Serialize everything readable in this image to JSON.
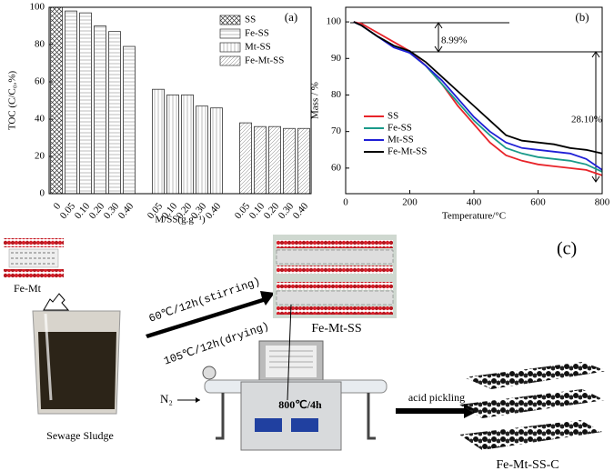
{
  "chart_data": [
    {
      "type": "bar",
      "panel_label": "(a)",
      "x_label": "M/SS(g.g⁻¹)",
      "y_label": "TOC (C/C₀,%)",
      "categories": [
        "0",
        "0.05",
        "0.10",
        "0.20",
        "0.30",
        "0.40",
        null,
        "0.05",
        "0.10",
        "0.20",
        "0.30",
        "0.40",
        null,
        "0.05",
        "0.10",
        "0.20",
        "0.30",
        "0.40"
      ],
      "series": [
        {
          "name": "SS",
          "pattern": "crosshatch",
          "values": [
            100,
            null,
            null,
            null,
            null,
            null,
            null,
            null,
            null,
            null,
            null,
            null,
            null,
            null,
            null,
            null,
            null,
            null
          ]
        },
        {
          "name": "Fe-SS",
          "pattern": "horizontal",
          "values": [
            null,
            98,
            97,
            90,
            87,
            79,
            null,
            null,
            null,
            null,
            null,
            null,
            null,
            null,
            null,
            null,
            null,
            null
          ]
        },
        {
          "name": "Mt-SS",
          "pattern": "vertical",
          "values": [
            null,
            null,
            null,
            null,
            null,
            null,
            null,
            56,
            53,
            53,
            47,
            46,
            null,
            null,
            null,
            null,
            null,
            null
          ]
        },
        {
          "name": "Fe-Mt-SS",
          "pattern": "diagonal",
          "values": [
            null,
            null,
            null,
            null,
            null,
            null,
            null,
            null,
            null,
            null,
            null,
            null,
            null,
            38,
            36,
            36,
            35,
            35
          ]
        }
      ],
      "ylim": [
        0,
        100
      ],
      "yticks": [
        0,
        20,
        40,
        60,
        80,
        100
      ],
      "legend": "upper-right"
    },
    {
      "type": "line",
      "panel_label": "(b)",
      "x_label": "Temperature/°C",
      "y_label": "Mass / %",
      "annotations": [
        "8.99%",
        "28.10%"
      ],
      "x": [
        25,
        50,
        100,
        150,
        200,
        250,
        300,
        350,
        400,
        450,
        500,
        550,
        600,
        650,
        700,
        750,
        800
      ],
      "series": [
        {
          "name": "SS",
          "color": "#e8242a",
          "values": [
            100,
            99.5,
            97,
            94.5,
            92,
            88,
            83,
            77,
            72,
            67,
            63.5,
            62,
            61,
            60.5,
            60,
            59.5,
            58
          ]
        },
        {
          "name": "Fe-SS",
          "color": "#1a9a8a",
          "values": [
            100,
            99,
            96,
            93.5,
            91.5,
            88,
            83,
            78,
            73,
            69,
            65.5,
            64,
            63,
            62.5,
            62,
            61,
            59
          ]
        },
        {
          "name": "Mt-SS",
          "color": "#1f1fd6",
          "values": [
            100,
            99,
            96,
            93,
            91.5,
            88,
            84,
            79,
            74,
            70,
            67,
            65.5,
            65,
            64.5,
            64,
            62.5,
            59.5
          ]
        },
        {
          "name": "Fe-Mt-SS",
          "color": "#000000",
          "values": [
            100,
            99,
            96,
            93.5,
            92,
            89,
            85,
            81,
            77,
            73,
            69,
            67.5,
            67,
            66.5,
            65.5,
            65,
            64
          ]
        }
      ],
      "xlim": [
        0,
        800
      ],
      "xticks": [
        0,
        200,
        400,
        600,
        800
      ],
      "ylim": [
        53,
        104
      ],
      "yticks": [
        60,
        70,
        80,
        90,
        100
      ],
      "legend": "lower-left"
    }
  ],
  "diagram": {
    "panel_label": "(c)",
    "fe_mt": "Fe-Mt",
    "stirring": "60℃/12h(stirring)",
    "drying": "105℃/12h(drying)",
    "fe_mt_ss": "Fe-Mt-SS",
    "gas": "N₂",
    "furnace": "800℃/4h",
    "acid": "acid pickling",
    "sludge": "Sewage Sludge",
    "product": "Fe-Mt-SS-C"
  }
}
